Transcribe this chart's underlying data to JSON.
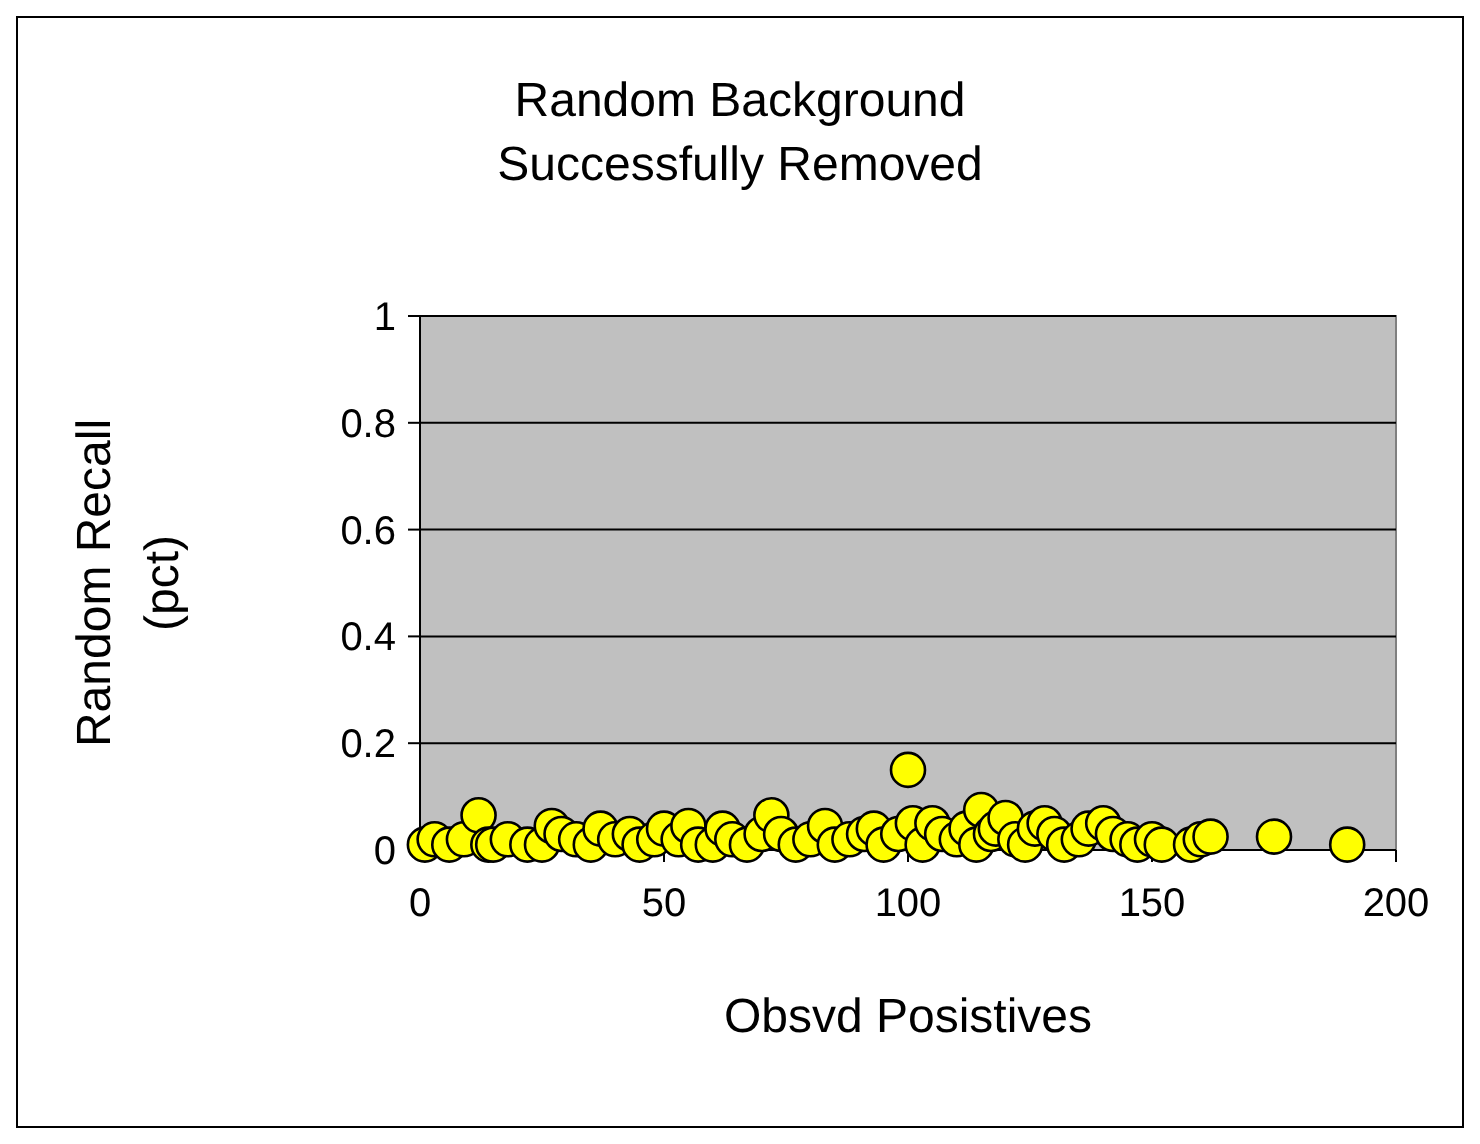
{
  "chart_data": {
    "type": "scatter",
    "title": "Random Background Successfully Removed",
    "xlabel": "Obsvd Posistives",
    "ylabel": "Random Recall (pct)",
    "x": [
      1,
      3,
      6,
      9,
      12,
      14,
      15,
      18,
      22,
      25,
      27,
      29,
      32,
      35,
      37,
      40,
      43,
      45,
      48,
      50,
      53,
      55,
      57,
      60,
      62,
      64,
      67,
      70,
      72,
      74,
      77,
      80,
      83,
      85,
      88,
      91,
      93,
      95,
      98,
      100,
      101,
      103,
      105,
      107,
      110,
      112,
      114,
      115,
      117,
      118,
      120,
      122,
      124,
      126,
      128,
      130,
      132,
      135,
      137,
      140,
      142,
      145,
      147,
      150,
      152,
      158,
      160,
      162,
      175,
      190
    ],
    "values": [
      0.01,
      0.02,
      0.01,
      0.02,
      0.065,
      0.01,
      0.01,
      0.02,
      0.01,
      0.01,
      0.045,
      0.03,
      0.02,
      0.01,
      0.04,
      0.02,
      0.03,
      0.01,
      0.02,
      0.04,
      0.02,
      0.045,
      0.01,
      0.01,
      0.04,
      0.02,
      0.01,
      0.03,
      0.065,
      0.03,
      0.01,
      0.02,
      0.045,
      0.01,
      0.02,
      0.03,
      0.04,
      0.01,
      0.03,
      0.15,
      0.05,
      0.01,
      0.05,
      0.03,
      0.02,
      0.04,
      0.01,
      0.075,
      0.03,
      0.04,
      0.06,
      0.02,
      0.01,
      0.04,
      0.05,
      0.03,
      0.01,
      0.02,
      0.04,
      0.05,
      0.03,
      0.02,
      0.01,
      0.02,
      0.01,
      0.01,
      0.02,
      0.025,
      0.025,
      0.01
    ],
    "color": "#ffff00",
    "marker": "circle",
    "xlim": [
      0,
      200
    ],
    "xticks": [
      0,
      50,
      100,
      150,
      200
    ],
    "ylim": [
      0,
      1
    ],
    "yticks": [
      0,
      0.2,
      0.4,
      0.6,
      0.8,
      1
    ],
    "grid": "y"
  }
}
